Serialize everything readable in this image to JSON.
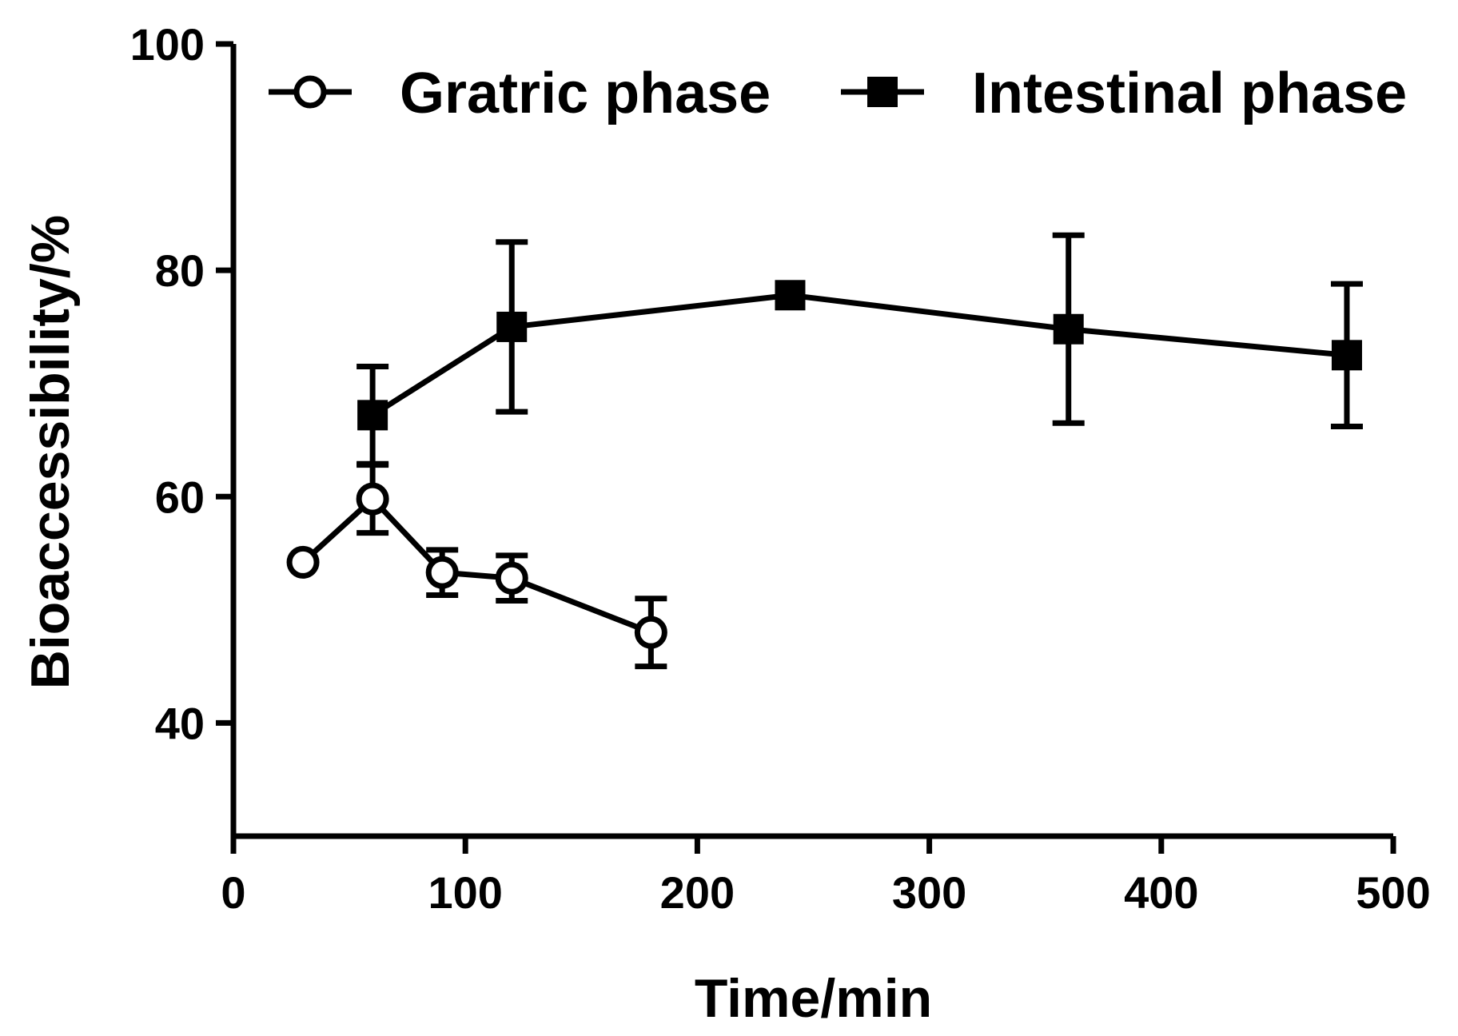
{
  "chart_data": {
    "type": "line",
    "title": "",
    "xlabel": "Time/min",
    "ylabel": "Bioaccessibility/%",
    "xlim": [
      0,
      500
    ],
    "ylim": [
      30,
      100
    ],
    "x_ticks": [
      0,
      100,
      200,
      300,
      400,
      500
    ],
    "y_ticks": [
      40,
      60,
      80,
      100
    ],
    "grid": false,
    "legend_position": "top",
    "series": [
      {
        "name": "Gratric phase",
        "marker": "open-circle",
        "color": "#000000",
        "x": [
          30,
          60,
          90,
          120,
          180
        ],
        "y": [
          54.2,
          59.8,
          53.3,
          52.8,
          48.0
        ],
        "error": [
          0,
          3.0,
          2.0,
          2.0,
          3.0
        ]
      },
      {
        "name": "Intestinal phase",
        "marker": "filled-square",
        "color": "#000000",
        "x": [
          60,
          120,
          240,
          360,
          480
        ],
        "y": [
          67.2,
          75.0,
          77.8,
          74.8,
          72.5
        ],
        "error": [
          4.3,
          7.5,
          0,
          8.3,
          6.3
        ]
      }
    ]
  }
}
